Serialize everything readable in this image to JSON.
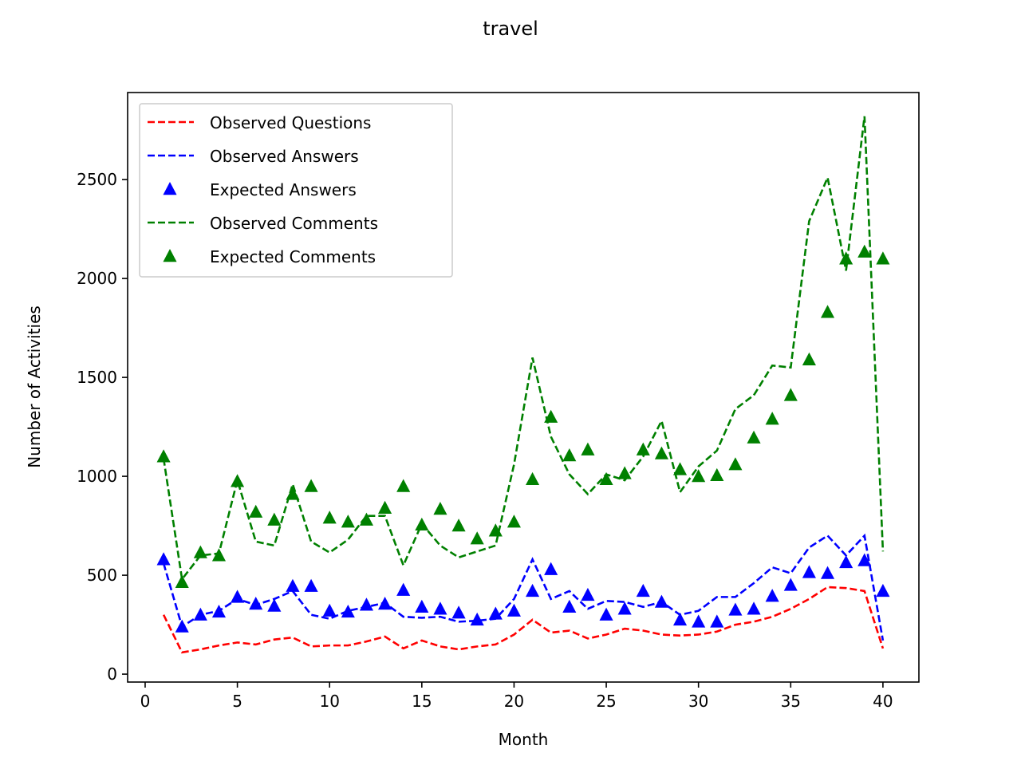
{
  "chart_data": {
    "type": "line",
    "title": "travel",
    "xlabel": "Month",
    "ylabel": "Number of Activities",
    "xlim": [
      -0.95,
      41.95
    ],
    "ylim": [
      -40,
      2940
    ],
    "xticks": [
      0,
      5,
      10,
      15,
      20,
      25,
      30,
      35,
      40
    ],
    "yticks": [
      0,
      500,
      1000,
      1500,
      2000,
      2500
    ],
    "legend_position": "upper-left",
    "grid": false,
    "x": [
      1,
      2,
      3,
      4,
      5,
      6,
      7,
      8,
      9,
      10,
      11,
      12,
      13,
      14,
      15,
      16,
      17,
      18,
      19,
      20,
      21,
      22,
      23,
      24,
      25,
      26,
      27,
      28,
      29,
      30,
      31,
      32,
      33,
      34,
      35,
      36,
      37,
      38,
      39,
      40
    ],
    "series": [
      {
        "name": "Observed Questions",
        "style": "dashed-line",
        "color": "#ff0000",
        "values": [
          300,
          110,
          125,
          145,
          160,
          150,
          175,
          185,
          140,
          145,
          145,
          165,
          190,
          130,
          170,
          140,
          125,
          140,
          150,
          200,
          275,
          210,
          220,
          180,
          200,
          230,
          220,
          200,
          195,
          200,
          215,
          250,
          265,
          290,
          330,
          380,
          440,
          435,
          420,
          130
        ]
      },
      {
        "name": "Observed Answers",
        "style": "dashed-line",
        "color": "#0000ff",
        "values": [
          560,
          240,
          300,
          320,
          380,
          350,
          380,
          420,
          300,
          280,
          320,
          340,
          360,
          290,
          285,
          290,
          265,
          270,
          280,
          380,
          580,
          380,
          420,
          330,
          370,
          365,
          340,
          365,
          300,
          320,
          390,
          390,
          460,
          540,
          510,
          640,
          700,
          600,
          700,
          170
        ]
      },
      {
        "name": "Expected Answers",
        "style": "triangle-marker",
        "color": "#0000ff",
        "values": [
          580,
          240,
          300,
          315,
          390,
          355,
          345,
          445,
          445,
          320,
          315,
          350,
          355,
          425,
          340,
          330,
          310,
          275,
          305,
          320,
          420,
          530,
          340,
          400,
          300,
          330,
          420,
          365,
          275,
          265,
          265,
          325,
          330,
          395,
          450,
          515,
          510,
          565,
          575,
          420
        ]
      },
      {
        "name": "Observed Comments",
        "style": "dashed-line",
        "color": "#008000",
        "values": [
          1090,
          480,
          600,
          610,
          980,
          670,
          650,
          960,
          670,
          615,
          680,
          800,
          800,
          550,
          760,
          650,
          590,
          620,
          650,
          1060,
          1600,
          1200,
          1010,
          910,
          1010,
          980,
          1100,
          1280,
          920,
          1050,
          1130,
          1340,
          1410,
          1560,
          1550,
          2290,
          2510,
          2040,
          2820,
          620
        ]
      },
      {
        "name": "Expected Comments",
        "style": "triangle-marker",
        "color": "#008000",
        "values": [
          1100,
          465,
          615,
          600,
          975,
          820,
          780,
          910,
          950,
          790,
          770,
          780,
          840,
          950,
          755,
          835,
          750,
          685,
          725,
          770,
          985,
          1300,
          1105,
          1135,
          985,
          1015,
          1135,
          1115,
          1035,
          1000,
          1005,
          1060,
          1195,
          1290,
          1410,
          1590,
          1830,
          2100,
          2135,
          2100
        ]
      }
    ]
  }
}
